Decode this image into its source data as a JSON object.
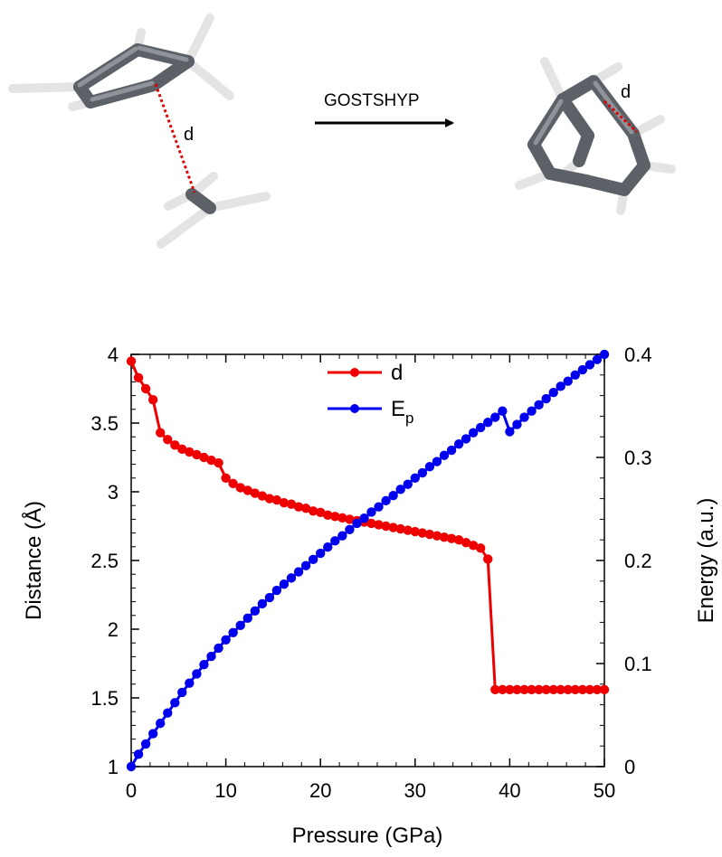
{
  "scheme": {
    "arrow_label": "GOSTSHYP",
    "distance_label_left": "d",
    "distance_label_right": "d"
  },
  "colors": {
    "d_series": "#ee0000",
    "ep_series": "#0000ee",
    "distance_line": "#dd0000",
    "molecule_dark": "#555a60",
    "molecule_light": "#e8e8e8"
  },
  "chart_data": {
    "type": "line",
    "xlabel": "Pressure (GPa)",
    "ylabel": "Distance (Å)",
    "y2label": "Energy (a.u.)",
    "xlim": [
      0,
      50
    ],
    "ylim": [
      1,
      4
    ],
    "y2lim": [
      0,
      0.4
    ],
    "x_ticks": [
      "0",
      "10",
      "20",
      "30",
      "40",
      "50"
    ],
    "y_ticks": [
      "1",
      "1.5",
      "2",
      "2.5",
      "3",
      "3.5",
      "4"
    ],
    "y2_ticks": [
      "0",
      "0.1",
      "0.2",
      "0.3",
      "0.4"
    ],
    "legend_position": "top-center",
    "grid": false,
    "series": [
      {
        "name": "d",
        "legend_main": "d",
        "legend_sub": "",
        "axis": "left",
        "x": [
          0,
          0.77,
          1.54,
          2.31,
          3.08,
          3.85,
          4.62,
          5.38,
          6.15,
          6.92,
          7.69,
          8.46,
          9.23,
          10,
          10.77,
          11.54,
          12.31,
          13.08,
          13.85,
          14.62,
          15.38,
          16.15,
          16.92,
          17.69,
          18.46,
          19.23,
          20,
          20.77,
          21.54,
          22.31,
          23.08,
          23.85,
          24.62,
          25.38,
          26.15,
          26.92,
          27.69,
          28.46,
          29.23,
          30,
          30.77,
          31.54,
          32.31,
          33.08,
          33.85,
          34.62,
          35.38,
          36.15,
          36.92,
          37.69,
          38.46,
          39.23,
          40,
          40.77,
          41.54,
          42.31,
          43.08,
          43.85,
          44.62,
          45.38,
          46.15,
          46.92,
          47.69,
          48.46,
          49.23,
          50
        ],
        "y": [
          3.95,
          3.83,
          3.75,
          3.67,
          3.43,
          3.38,
          3.34,
          3.31,
          3.29,
          3.27,
          3.25,
          3.23,
          3.21,
          3.1,
          3.06,
          3.03,
          3.01,
          2.99,
          2.97,
          2.95,
          2.94,
          2.92,
          2.91,
          2.89,
          2.88,
          2.86,
          2.85,
          2.83,
          2.82,
          2.81,
          2.8,
          2.79,
          2.78,
          2.77,
          2.76,
          2.75,
          2.74,
          2.73,
          2.72,
          2.71,
          2.7,
          2.69,
          2.68,
          2.67,
          2.66,
          2.65,
          2.63,
          2.61,
          2.59,
          2.51,
          1.56,
          1.56,
          1.56,
          1.56,
          1.56,
          1.56,
          1.56,
          1.56,
          1.56,
          1.56,
          1.56,
          1.56,
          1.56,
          1.56,
          1.56,
          1.56
        ]
      },
      {
        "name": "E_p",
        "legend_main": "E",
        "legend_sub": "p",
        "axis": "right",
        "x": [
          0,
          0.77,
          1.54,
          2.31,
          3.08,
          3.85,
          4.62,
          5.38,
          6.15,
          6.92,
          7.69,
          8.46,
          9.23,
          10,
          10.77,
          11.54,
          12.31,
          13.08,
          13.85,
          14.62,
          15.38,
          16.15,
          16.92,
          17.69,
          18.46,
          19.23,
          20,
          20.77,
          21.54,
          22.31,
          23.08,
          23.85,
          24.62,
          25.38,
          26.15,
          26.92,
          27.69,
          28.46,
          29.23,
          30,
          30.77,
          31.54,
          32.31,
          33.08,
          33.85,
          34.62,
          35.38,
          36.15,
          36.92,
          37.69,
          38.46,
          39.23,
          40,
          40.77,
          41.54,
          42.31,
          43.08,
          43.85,
          44.62,
          45.38,
          46.15,
          46.92,
          47.69,
          48.46,
          49.23,
          50
        ],
        "y": [
          0.0,
          0.012,
          0.022,
          0.032,
          0.042,
          0.052,
          0.062,
          0.072,
          0.081,
          0.09,
          0.099,
          0.107,
          0.115,
          0.123,
          0.13,
          0.137,
          0.144,
          0.151,
          0.158,
          0.164,
          0.171,
          0.177,
          0.183,
          0.189,
          0.195,
          0.201,
          0.207,
          0.213,
          0.219,
          0.224,
          0.23,
          0.236,
          0.241,
          0.247,
          0.252,
          0.258,
          0.263,
          0.269,
          0.274,
          0.28,
          0.285,
          0.291,
          0.296,
          0.302,
          0.307,
          0.313,
          0.318,
          0.324,
          0.329,
          0.334,
          0.339,
          0.345,
          0.325,
          0.332,
          0.339,
          0.345,
          0.351,
          0.357,
          0.363,
          0.369,
          0.374,
          0.38,
          0.385,
          0.39,
          0.395,
          0.4
        ]
      }
    ]
  }
}
